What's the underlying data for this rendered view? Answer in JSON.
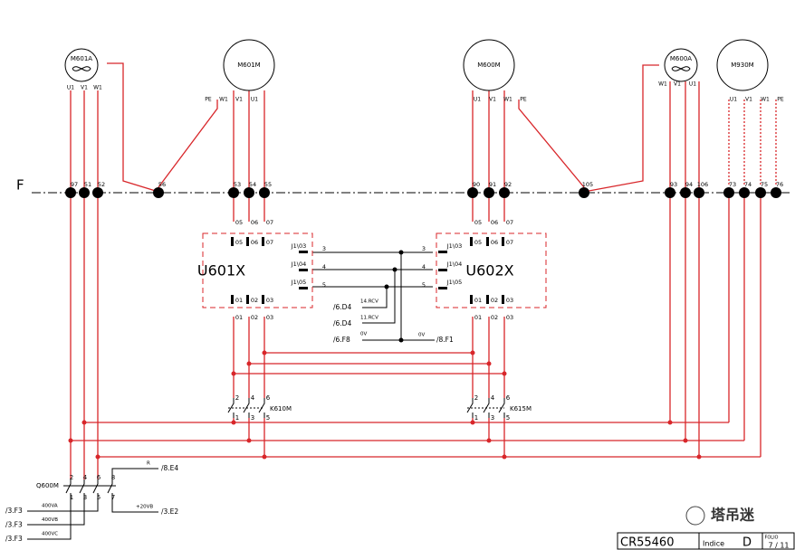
{
  "bus_label": "F",
  "motors": [
    {
      "label": "M601A",
      "pins": [
        "U1",
        "V1",
        "W1"
      ]
    },
    {
      "label": "M601M",
      "pins": [
        "PE",
        "W1",
        "V1",
        "U1"
      ]
    },
    {
      "label": "M600M",
      "pins": [
        "U1",
        "V1",
        "W1",
        "PE"
      ]
    },
    {
      "label": "M600A",
      "pins": [
        "W1",
        "V1",
        "U1"
      ]
    },
    {
      "label": "M930M",
      "pins": [
        "U1",
        "V1",
        "W1",
        "PE"
      ]
    }
  ],
  "terminals": [
    "97",
    "51",
    "52",
    "56",
    "53",
    "54",
    "55",
    "90",
    "91",
    "92",
    "105",
    "93",
    "94",
    "106",
    "73",
    "74",
    "75",
    "76"
  ],
  "units": [
    {
      "label": "U601X",
      "top_pins": [
        "05",
        "06",
        "07"
      ],
      "inner_top": [
        "05",
        "06",
        "07"
      ],
      "inner_bottom": [
        "01",
        "02",
        "03"
      ],
      "bottom_pins": [
        "01",
        "02",
        "03"
      ],
      "ports": [
        "J1\\03",
        "J1\\04",
        "J1\\05"
      ],
      "wires": [
        "3",
        "4",
        "5"
      ]
    },
    {
      "label": "U602X",
      "top_pins": [
        "05",
        "06",
        "07"
      ],
      "inner_top": [
        "05",
        "06",
        "07"
      ],
      "inner_bottom": [
        "01",
        "02",
        "03"
      ],
      "bottom_pins": [
        "01",
        "02",
        "03"
      ],
      "ports": [
        "J1\\03",
        "J1\\04",
        "J1\\05"
      ],
      "wires": [
        "3",
        "4",
        "5"
      ]
    }
  ],
  "signals": [
    {
      "ref": "/6.D4",
      "label": "14.RCV"
    },
    {
      "ref": "/6.D4",
      "label": "11.RCV"
    },
    {
      "ref": "/6.F8",
      "label": "0V"
    }
  ],
  "output": {
    "label": "0V",
    "ref": "/8.F1"
  },
  "contactors": [
    {
      "label": "K610M",
      "top": [
        "2",
        "4",
        "6"
      ],
      "bottom": [
        "1",
        "3",
        "5"
      ]
    },
    {
      "label": "K615M",
      "top": [
        "2",
        "4",
        "6"
      ],
      "bottom": [
        "1",
        "3",
        "5"
      ]
    }
  ],
  "breaker": {
    "label": "Q600M",
    "top": [
      "2",
      "4",
      "6",
      "8"
    ],
    "bottom": [
      "1",
      "3",
      "5",
      "7"
    ]
  },
  "aux": [
    {
      "label": "R",
      "ref": "/8.E4"
    },
    {
      "label": "+20VB",
      "ref": "/3.E2"
    }
  ],
  "supplies": [
    {
      "ref": "/3.F3",
      "label": "400VA"
    },
    {
      "ref": "/3.F3",
      "label": "400VB"
    },
    {
      "ref": "/3.F3",
      "label": "400VC"
    }
  ],
  "title_block": {
    "drawing": "CR55460",
    "index_label": "Indice",
    "index": "D",
    "folio_label": "FOLIO",
    "folio": "7 / 11"
  },
  "watermark": "塔吊迷"
}
